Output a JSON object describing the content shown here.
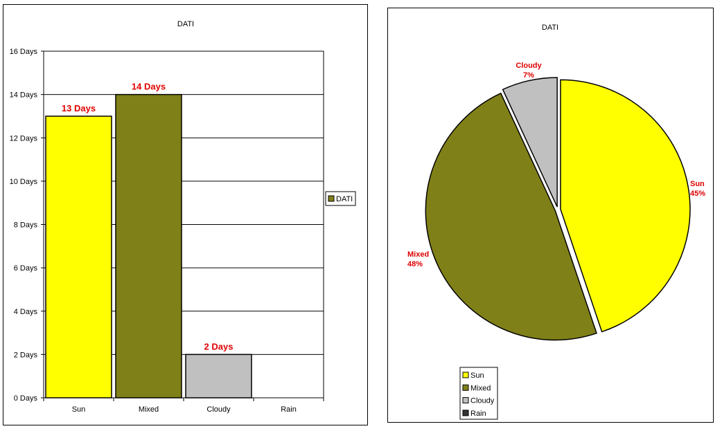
{
  "chart_data": [
    {
      "type": "bar",
      "title": "DATI",
      "categories": [
        "Sun",
        "Mixed",
        "Cloudy",
        "Rain"
      ],
      "series": [
        {
          "name": "DATI",
          "values": [
            13,
            14,
            2,
            0
          ]
        }
      ],
      "data_labels": [
        "13 Days",
        "14 Days",
        "2 Days",
        ""
      ],
      "ylim": [
        0,
        16
      ],
      "yticks": [
        0,
        2,
        4,
        6,
        8,
        10,
        12,
        14,
        16
      ],
      "ytick_labels": [
        "0 Days",
        "2 Days",
        "4 Days",
        "6 Days",
        "8 Days",
        "10 Days",
        "12 Days",
        "14 Days",
        "16 Days"
      ],
      "grid": true,
      "legend": {
        "position": "right",
        "entries": [
          "DATI"
        ]
      },
      "colors": [
        "#FFFF00",
        "#808019",
        "#C0C0C0",
        "#333333"
      ],
      "label_color": "#E00000"
    },
    {
      "type": "pie",
      "title": "DATI",
      "categories": [
        "Sun",
        "Mixed",
        "Cloudy",
        "Rain"
      ],
      "values": [
        13,
        14,
        2,
        0
      ],
      "percent_labels": [
        "45%",
        "48%",
        "7%",
        ""
      ],
      "legend": {
        "position": "bottom-left",
        "entries": [
          "Sun",
          "Mixed",
          "Cloudy",
          "Rain"
        ]
      },
      "colors": [
        "#FFFF00",
        "#808019",
        "#C0C0C0",
        "#333333"
      ],
      "label_color": "#E00000"
    }
  ]
}
